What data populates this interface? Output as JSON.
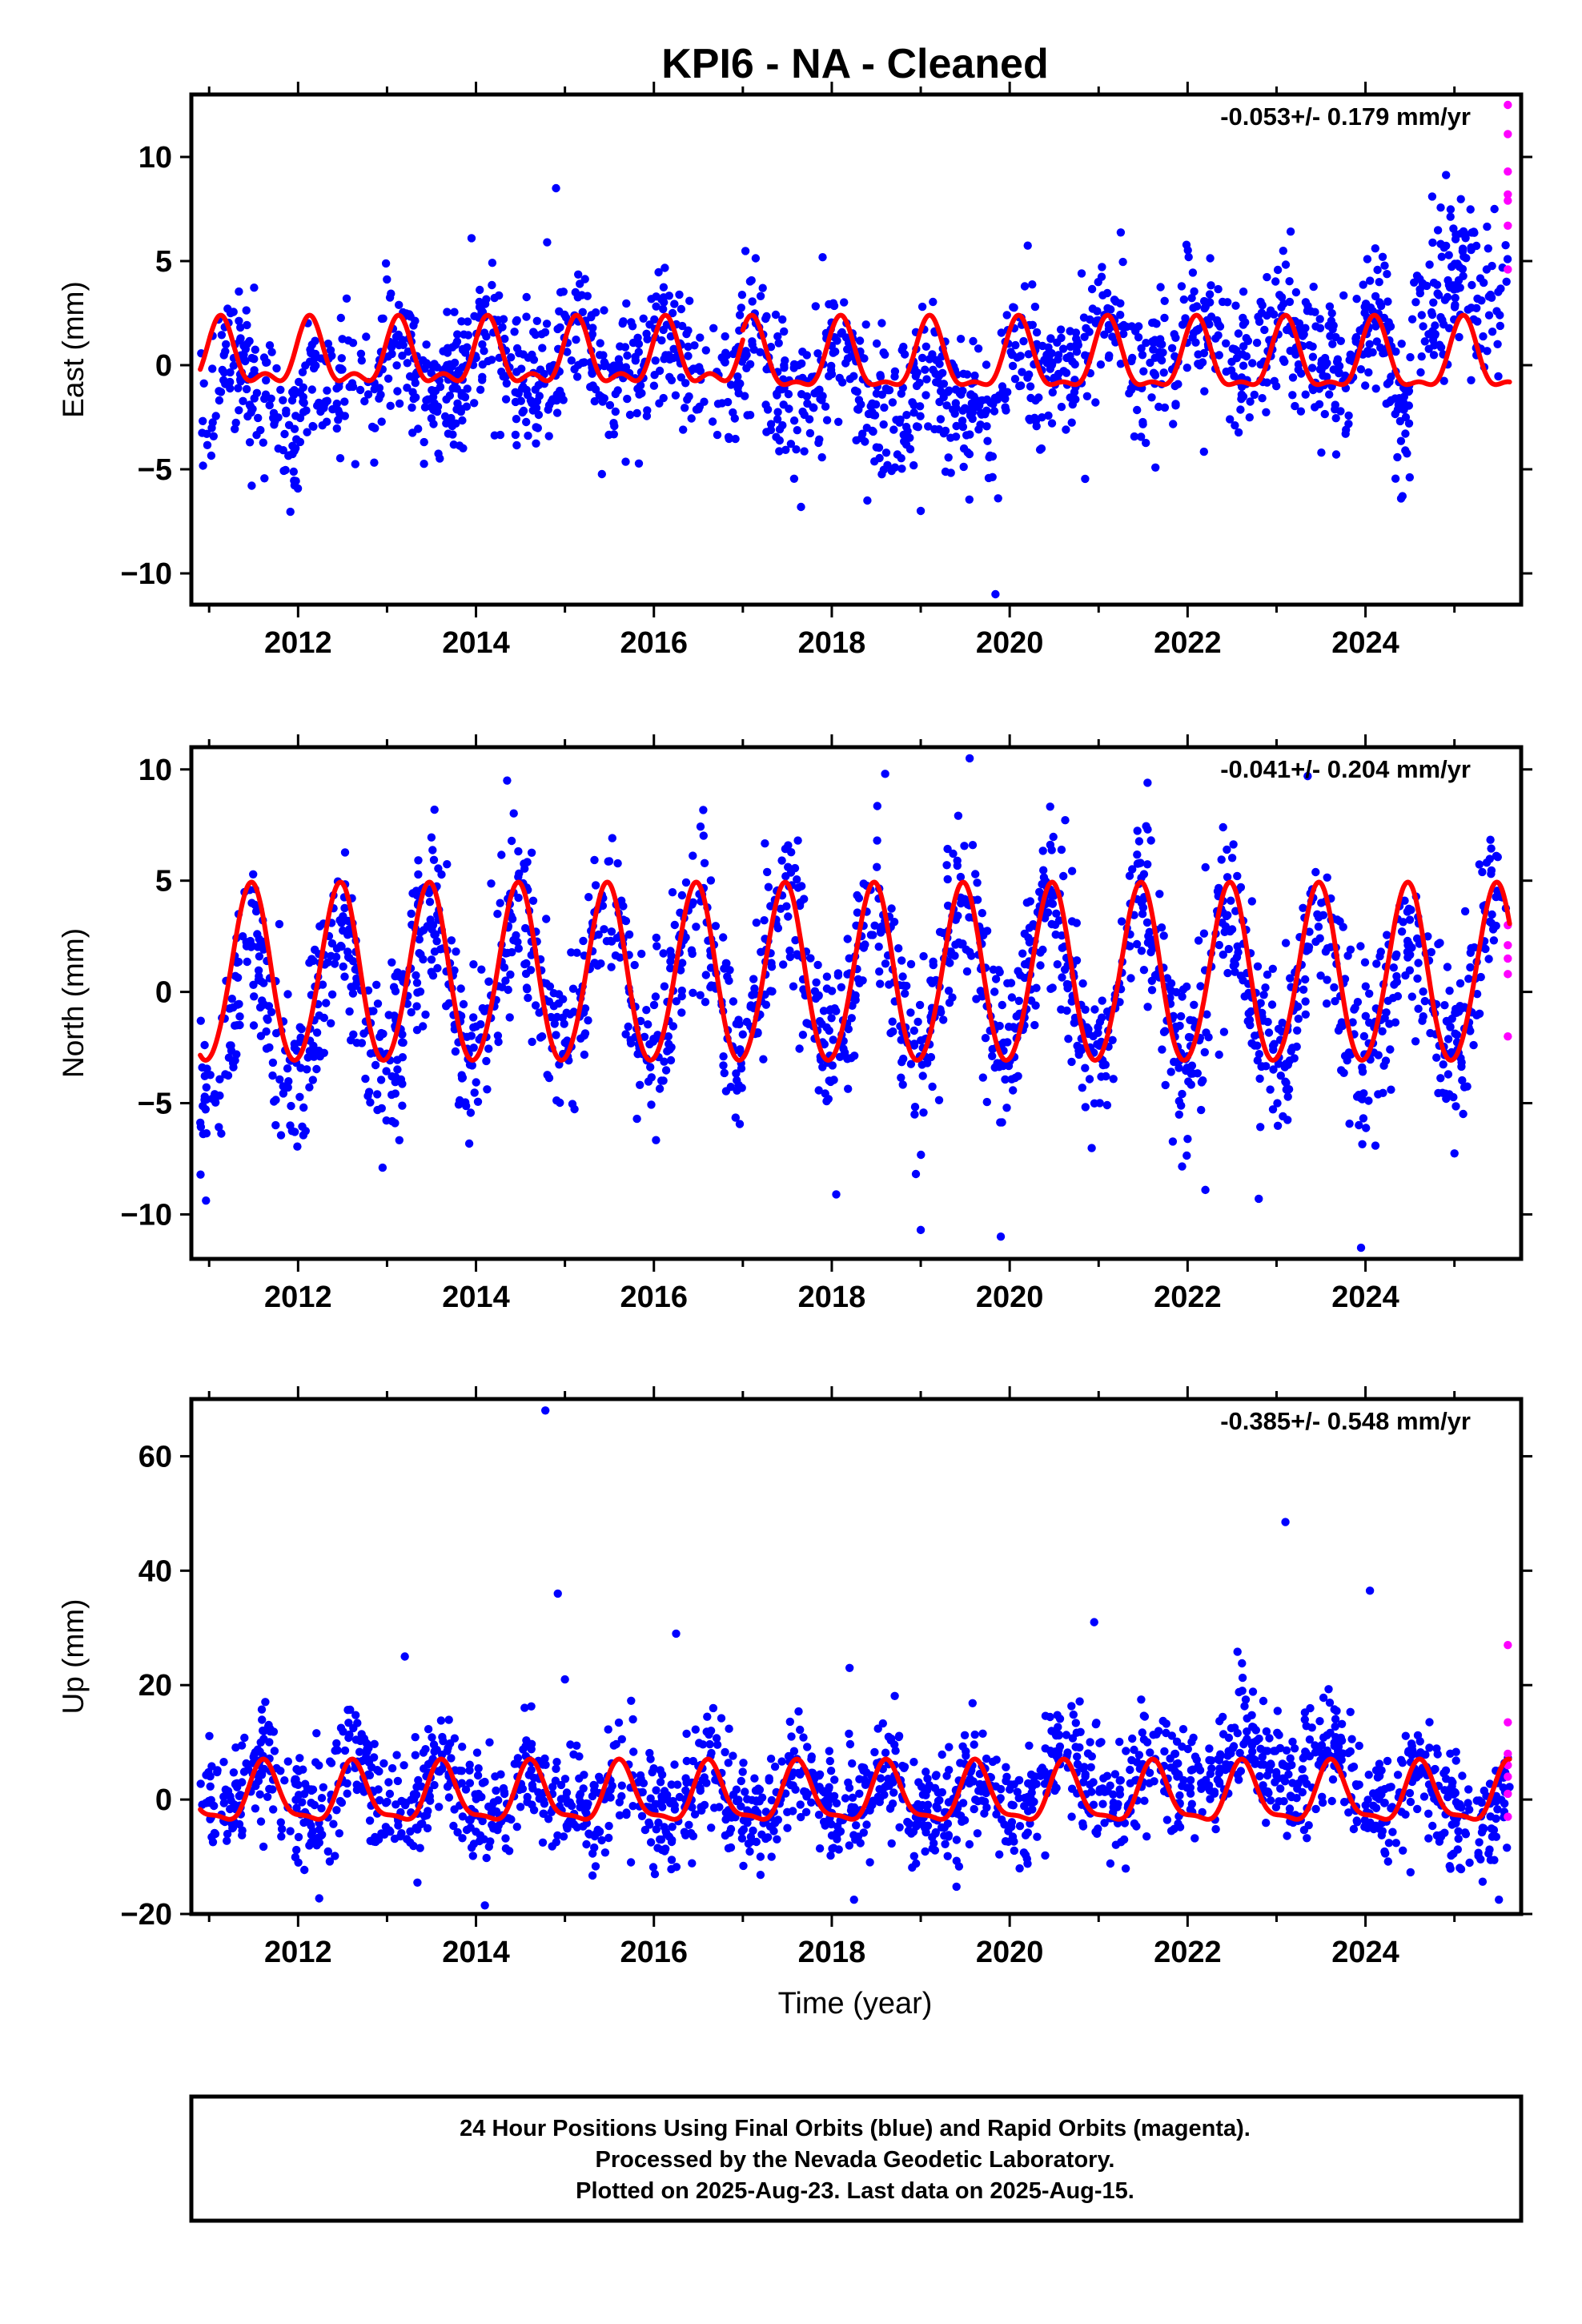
{
  "title": "KPI6  - NA - Cleaned",
  "colors": {
    "final": "#0000ff",
    "rapid": "#ff00ff",
    "model": "#ff0000",
    "frame": "#000000"
  },
  "x_axis_label": "Time (year)",
  "footer": {
    "lines": [
      "24 Hour Positions Using Final Orbits (blue) and Rapid Orbits (magenta).",
      "Processed by the Nevada Geodetic Laboratory.",
      "Plotted on 2025-Aug-23. Last data on 2025-Aug-15."
    ]
  },
  "chart_data": [
    {
      "type": "scatter",
      "name": "east",
      "ylabel": "East (mm)",
      "rate_text": "-0.053+/- 0.179 mm/yr",
      "xlim": [
        2010.8,
        2025.75
      ],
      "ylim": [
        -11.5,
        13
      ],
      "xticks": [
        2012,
        2014,
        2016,
        2018,
        2020,
        2022,
        2024
      ],
      "yticks": [
        -10,
        -5,
        0,
        5,
        10
      ],
      "model": {
        "segments": [
          {
            "x": [
              2010.9,
              2017.0
            ],
            "offset": 0.3,
            "amp1": -1.4,
            "phase1": 0.63,
            "amp2": 0.7,
            "phase2": 0.13
          },
          {
            "x": [
              2017.0,
              2024.5
            ],
            "offset": 0.2,
            "amp1": -1.6,
            "phase1": 0.6,
            "amp2": 0.6,
            "phase2": 0.1
          },
          {
            "x": [
              2024.5,
              2025.62
            ],
            "offset": 0.2,
            "amp1": -1.6,
            "phase1": 0.6,
            "amp2": 0.6,
            "phase2": 0.1
          }
        ]
      },
      "scatter_trend": [
        {
          "x": 2010.9,
          "y": -4.0
        },
        {
          "x": 2011.4,
          "y": 0.3
        },
        {
          "x": 2012.0,
          "y": -3.5
        },
        {
          "x": 2012.5,
          "y": 0.0
        },
        {
          "x": 2013.0,
          "y": -1.0
        },
        {
          "x": 2014.0,
          "y": 0.0
        },
        {
          "x": 2016.0,
          "y": 0.0
        },
        {
          "x": 2018.0,
          "y": -0.5
        },
        {
          "x": 2019.0,
          "y": -1.8
        },
        {
          "x": 2020.0,
          "y": -1.5
        },
        {
          "x": 2020.5,
          "y": 0.7
        },
        {
          "x": 2022.0,
          "y": 1.0
        },
        {
          "x": 2024.2,
          "y": 0.3
        },
        {
          "x": 2024.45,
          "y": -3.0
        },
        {
          "x": 2024.55,
          "y": 3.3
        },
        {
          "x": 2025.3,
          "y": 2.8
        },
        {
          "x": 2025.6,
          "y": 5.0
        }
      ],
      "scatter_scatter": 1.7,
      "outliers": [
        {
          "x": 2014.9,
          "y": 8.5
        },
        {
          "x": 2013.95,
          "y": 6.1
        },
        {
          "x": 2014.8,
          "y": 5.9
        },
        {
          "x": 2019.84,
          "y": -11.0
        },
        {
          "x": 2019.0,
          "y": -7.0
        },
        {
          "x": 2018.4,
          "y": -6.5
        },
        {
          "x": 2024.4,
          "y": -6.4
        },
        {
          "x": 2024.75,
          "y": 8.1
        },
        {
          "x": 2025.45,
          "y": 7.5
        }
      ],
      "rapid_points": [
        {
          "x": 2025.6,
          "y": 12.5
        },
        {
          "x": 2025.6,
          "y": 11.1
        },
        {
          "x": 2025.6,
          "y": 9.3
        },
        {
          "x": 2025.6,
          "y": 8.2
        },
        {
          "x": 2025.6,
          "y": 7.9
        },
        {
          "x": 2025.6,
          "y": 6.7
        },
        {
          "x": 2025.6,
          "y": 4.6
        }
      ]
    },
    {
      "type": "scatter",
      "name": "north",
      "ylabel": "North (mm)",
      "rate_text": "-0.041+/- 0.204 mm/yr",
      "xlim": [
        2010.8,
        2025.75
      ],
      "ylim": [
        -12,
        11
      ],
      "xticks": [
        2012,
        2014,
        2016,
        2018,
        2020,
        2022,
        2024
      ],
      "yticks": [
        -10,
        -5,
        0,
        5,
        10
      ],
      "model": {
        "segments": [
          {
            "x": [
              2010.9,
              2025.62
            ],
            "offset": 0.7,
            "amp1": -4.0,
            "phase1": 0.97,
            "amp2": 0.25,
            "phase2": 0.0
          }
        ]
      },
      "scatter_trend": [
        {
          "x": 2010.9,
          "y": -2.5
        },
        {
          "x": 2014.0,
          "y": 0.0
        },
        {
          "x": 2020.0,
          "y": 0.0
        },
        {
          "x": 2022.5,
          "y": -0.5
        },
        {
          "x": 2024.5,
          "y": -1.0
        },
        {
          "x": 2025.6,
          "y": 0.5
        }
      ],
      "scatter_scatter": 1.9,
      "outliers": [
        {
          "x": 2014.35,
          "y": 9.5
        },
        {
          "x": 2018.6,
          "y": 9.8
        },
        {
          "x": 2019.55,
          "y": 10.5
        },
        {
          "x": 2019.0,
          "y": -10.7
        },
        {
          "x": 2019.9,
          "y": -11.0
        },
        {
          "x": 2023.95,
          "y": -11.5
        },
        {
          "x": 2018.05,
          "y": -9.1
        },
        {
          "x": 2022.2,
          "y": -8.9
        },
        {
          "x": 2022.8,
          "y": -9.3
        },
        {
          "x": 2023.35,
          "y": 9.7
        },
        {
          "x": 2021.55,
          "y": 9.4
        },
        {
          "x": 2012.95,
          "y": -7.9
        }
      ],
      "rapid_points": [
        {
          "x": 2025.6,
          "y": 3.0
        },
        {
          "x": 2025.6,
          "y": 2.1
        },
        {
          "x": 2025.6,
          "y": 1.5
        },
        {
          "x": 2025.6,
          "y": 0.8
        },
        {
          "x": 2025.6,
          "y": -2.0
        }
      ]
    },
    {
      "type": "scatter",
      "name": "up",
      "ylabel": "Up (mm)",
      "rate_text": "-0.385+/- 0.548 mm/yr",
      "xlim": [
        2010.8,
        2025.75
      ],
      "ylim": [
        -20,
        70
      ],
      "xticks": [
        2012,
        2014,
        2016,
        2018,
        2020,
        2022,
        2024
      ],
      "yticks": [
        -20,
        0,
        20,
        40,
        60
      ],
      "model": {
        "segments": [
          {
            "x": [
              2010.9,
              2025.62
            ],
            "offset": 0.5,
            "amp1": 5.0,
            "phase1": 0.62,
            "amp2": 1.6,
            "phase2": 0.1
          }
        ]
      },
      "scatter_trend": [
        {
          "x": 2010.9,
          "y": 2.0
        },
        {
          "x": 2016.0,
          "y": 0.0
        },
        {
          "x": 2020.0,
          "y": 0.0
        },
        {
          "x": 2020.6,
          "y": 5.0
        },
        {
          "x": 2021.5,
          "y": 3.0
        },
        {
          "x": 2022.6,
          "y": 7.0
        },
        {
          "x": 2023.6,
          "y": 4.0
        },
        {
          "x": 2024.5,
          "y": 0.0
        },
        {
          "x": 2025.6,
          "y": -3.0
        }
      ],
      "scatter_scatter": 5.0,
      "outliers": [
        {
          "x": 2014.78,
          "y": 68
        },
        {
          "x": 2014.92,
          "y": 36
        },
        {
          "x": 2015.0,
          "y": 21
        },
        {
          "x": 2016.25,
          "y": 29
        },
        {
          "x": 2013.2,
          "y": 25
        },
        {
          "x": 2018.2,
          "y": 23
        },
        {
          "x": 2020.95,
          "y": 31
        },
        {
          "x": 2023.1,
          "y": 48.5
        },
        {
          "x": 2024.05,
          "y": 36.5
        },
        {
          "x": 2014.1,
          "y": -18.5
        },
        {
          "x": 2018.25,
          "y": -17.5
        },
        {
          "x": 2025.5,
          "y": -17.5
        }
      ],
      "rapid_points": [
        {
          "x": 2025.6,
          "y": 27
        },
        {
          "x": 2025.6,
          "y": 13.5
        },
        {
          "x": 2025.6,
          "y": 8.0
        },
        {
          "x": 2025.6,
          "y": 6.0
        },
        {
          "x": 2025.6,
          "y": 4.0
        },
        {
          "x": 2025.6,
          "y": 1.0
        },
        {
          "x": 2025.6,
          "y": -3.0
        }
      ]
    }
  ]
}
